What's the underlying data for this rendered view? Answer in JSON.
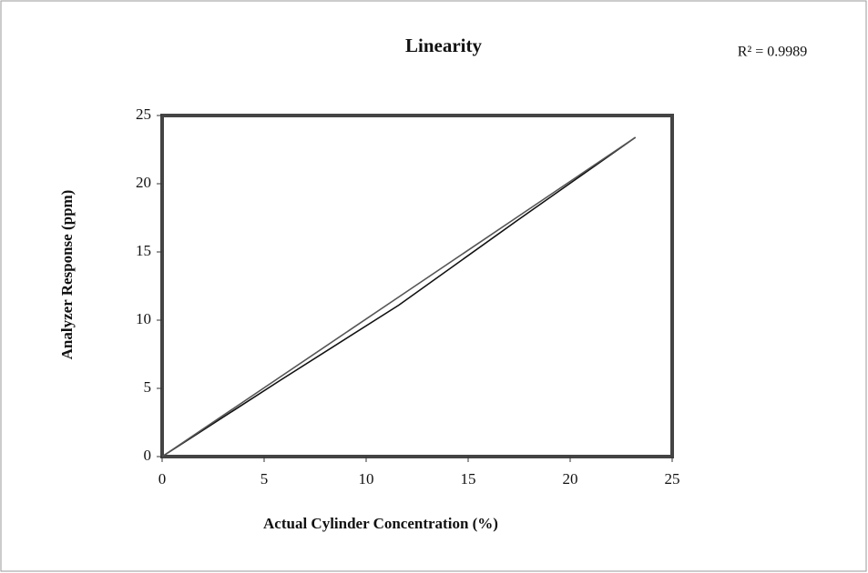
{
  "chart_data": {
    "type": "line",
    "title": "Linearity",
    "annotation": "R² = 0.9989",
    "xlabel": "Actual Cylinder Concentration (%)",
    "ylabel": "Analyzer Response (ppm)",
    "x": [
      0,
      5.8,
      11.6,
      17.4,
      23.2
    ],
    "series": [
      {
        "color": "#111111",
        "values": [
          0,
          5.6,
          11.1,
          17.3,
          23.4
        ]
      },
      {
        "color": "#555555",
        "values": [
          0,
          5.85,
          11.7,
          17.55,
          23.4
        ]
      }
    ],
    "xlim": [
      0,
      25
    ],
    "xticks": [
      0,
      5,
      10,
      15,
      20,
      25
    ],
    "ylim": [
      0,
      25
    ],
    "yticks": [
      0,
      5,
      10,
      15,
      20,
      25
    ]
  }
}
